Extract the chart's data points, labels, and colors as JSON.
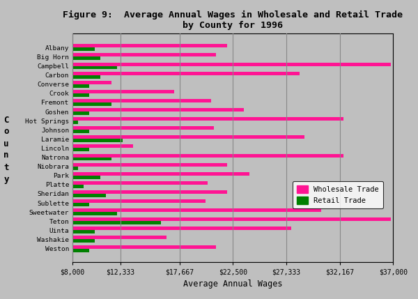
{
  "title": "Figure 9:  Average Annual Wages in Wholesale and Retail Trade\nby County for 1996",
  "xlabel": "Average Annual Wages",
  "ylabel_chars": [
    "C",
    "o",
    "u",
    "n",
    "t",
    "y"
  ],
  "xmin": 8000,
  "xmax": 37000,
  "xticks": [
    8000,
    12333,
    17667,
    22500,
    27333,
    32167,
    37000
  ],
  "xtick_labels": [
    "$8,000",
    "$12,333",
    "$17,667",
    "$22,500",
    "$27,333",
    "$32,167",
    "$37,000"
  ],
  "background_color": "#bfbfbf",
  "bar_color_wholesale": "#ff1493",
  "bar_color_retail": "#008000",
  "counties": [
    "Albany",
    "Big Horn",
    "Campbell",
    "Carbon",
    "Converse",
    "Crook",
    "Fremont",
    "Goshen",
    "Hot Springs",
    "Johnson",
    "Laramie",
    "Lincoln",
    "Natrona",
    "Niobrara",
    "Park",
    "Platte",
    "Sheridan",
    "Sublette",
    "Sweetwater",
    "Teton",
    "Uinta",
    "Washakie",
    "Weston"
  ],
  "wholesale": [
    22000,
    21000,
    36800,
    28500,
    11500,
    17200,
    20500,
    23500,
    32500,
    20800,
    29000,
    13500,
    32500,
    22000,
    24000,
    20200,
    22000,
    20000,
    30500,
    36800,
    27800,
    16500,
    21000
  ],
  "retail": [
    10000,
    10500,
    12000,
    10500,
    9500,
    9500,
    11500,
    9500,
    8500,
    9500,
    12500,
    9500,
    11500,
    8500,
    10500,
    9000,
    11000,
    9500,
    12000,
    16000,
    10000,
    10000,
    9500
  ]
}
